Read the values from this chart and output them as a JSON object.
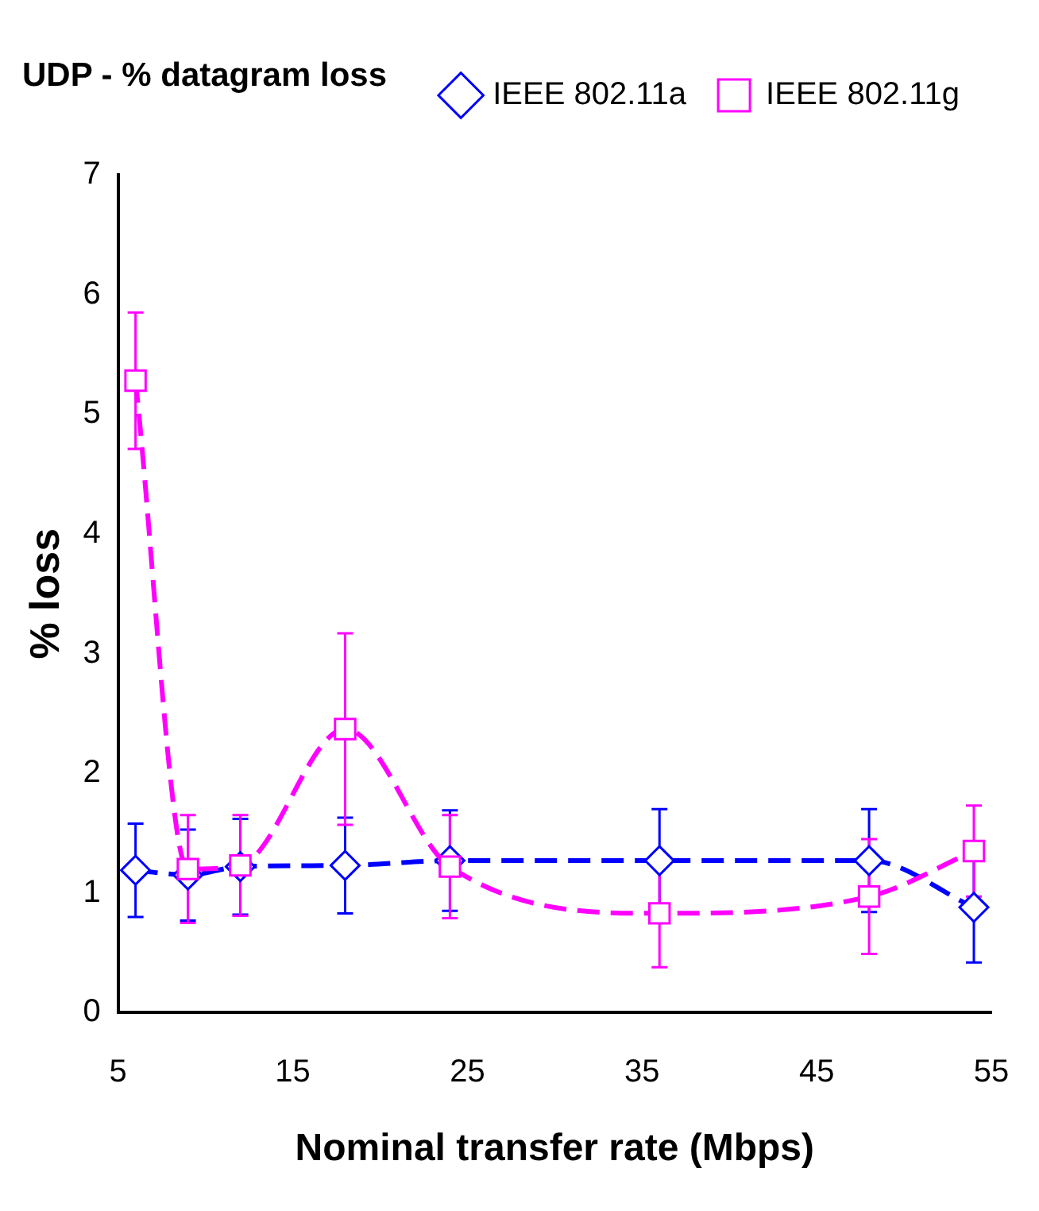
{
  "chart_data": {
    "type": "line",
    "title": "UDP - % datagram loss",
    "xlabel": "Nominal transfer rate (Mbps)",
    "ylabel": "% loss",
    "x": [
      6,
      9,
      12,
      18,
      24,
      36,
      48,
      54
    ],
    "series": [
      {
        "name": "IEEE 802.11a",
        "color": "#0000ff",
        "marker": "diamond",
        "values": [
          1.19,
          1.15,
          1.22,
          1.23,
          1.27,
          1.27,
          1.27,
          0.88
        ],
        "errors": [
          0.39,
          0.38,
          0.4,
          0.4,
          0.42,
          0.43,
          0.43,
          0.46
        ]
      },
      {
        "name": "IEEE 802.11g",
        "color": "#ff00ff",
        "marker": "square",
        "values": [
          5.28,
          1.2,
          1.23,
          2.37,
          1.22,
          0.83,
          0.97,
          1.35
        ],
        "errors": [
          0.57,
          0.45,
          0.42,
          0.8,
          0.43,
          0.45,
          0.48,
          0.38
        ]
      }
    ],
    "xlim": [
      5,
      55
    ],
    "xticks": [
      5,
      15,
      25,
      35,
      45,
      55
    ],
    "ylim": [
      0,
      7
    ],
    "yticks": [
      0,
      1,
      2,
      3,
      4,
      5,
      6,
      7
    ],
    "grid": false,
    "legend": "top right",
    "line_style": "dashed"
  }
}
